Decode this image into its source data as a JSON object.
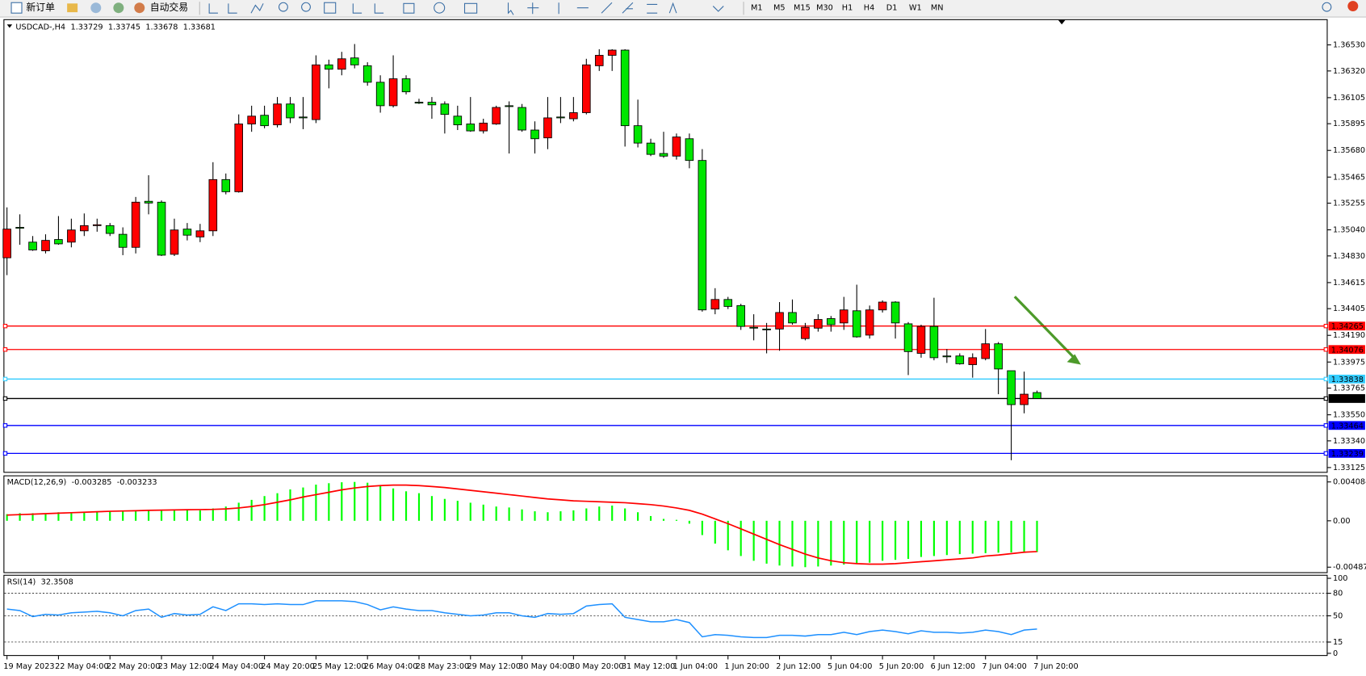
{
  "toolbar": {
    "new_order": "新订单",
    "auto_trading": "自动交易",
    "timeframes": [
      "M1",
      "M5",
      "M15",
      "M30",
      "H1",
      "H4",
      "D1",
      "W1",
      "MN"
    ]
  },
  "chart_data": [
    {
      "type": "candlestick",
      "title": "USDCAD-,H4",
      "up_color": "#ff0000",
      "down_color": "#00e600",
      "categories": [
        "19 May 2023",
        null,
        null,
        null,
        "22 May 04:00",
        null,
        null,
        null,
        "22 May 20:00",
        null,
        null,
        null,
        "23 May 12:00",
        null,
        null,
        null,
        "24 May 04:00",
        null,
        null,
        null,
        "24 May 20:00",
        null,
        null,
        null,
        "25 May 12:00",
        null,
        null,
        null,
        "26 May 04:00",
        null,
        null,
        null,
        "28 May 23:00",
        null,
        null,
        null,
        "29 May 12:00",
        null,
        null,
        null,
        "30 May 04:00",
        null,
        null,
        null,
        "30 May 20:00",
        null,
        null,
        null,
        "31 May 12:00",
        null,
        null,
        null,
        "1 Jun 04:00",
        null,
        null,
        null,
        "1 Jun 20:00",
        null,
        null,
        null,
        "2 Jun 12:00",
        null,
        null,
        null,
        "5 Jun 04:00",
        null,
        null,
        null,
        "5 Jun 20:00",
        null,
        null,
        null,
        "6 Jun 12:00",
        null,
        null,
        null,
        "7 Jun 04:00",
        null,
        null,
        null,
        "7 Jun 20:00"
      ],
      "open": [
        1.34815,
        1.3506,
        1.34941,
        1.34871,
        1.34962,
        1.34941,
        1.35032,
        1.35074,
        1.35074,
        1.35004,
        1.34899,
        1.3527,
        1.35263,
        1.34843,
        1.35046,
        1.34983,
        1.35032,
        1.35445,
        1.35347,
        1.35893,
        1.35963,
        1.35886,
        1.36054,
        1.35949,
        1.35928,
        1.36369,
        1.36334,
        1.36425,
        1.36362,
        1.36229,
        1.3604,
        1.36257,
        1.36068,
        1.36068,
        1.36054,
        1.35956,
        1.35893,
        1.35837,
        1.35893,
        1.3604,
        1.36026,
        1.35844,
        1.35781,
        1.35949,
        1.35935,
        1.35984,
        1.36362,
        1.36446,
        1.36488,
        1.35879,
        1.35739,
        1.35655,
        1.35634,
        1.35774,
        1.35599,
        1.34402,
        1.34479,
        1.3443,
        1.34255,
        1.34241,
        1.34241,
        1.34374,
        1.34164,
        1.34248,
        1.34325,
        1.3429,
        1.34388,
        1.34192,
        1.34395,
        1.34458,
        1.34283,
        1.34045,
        1.34262,
        1.34024,
        1.34024,
        1.33954,
        1.34003,
        1.34122,
        1.33905,
        1.33632,
        1.33729
      ],
      "high": [
        1.35221,
        1.35165,
        1.3499,
        1.35004,
        1.35151,
        1.3513,
        1.35172,
        1.3513,
        1.35095,
        1.3506,
        1.35305,
        1.3548,
        1.35277,
        1.3513,
        1.35095,
        1.35088,
        1.35585,
        1.35494,
        1.3597,
        1.3604,
        1.3604,
        1.3611,
        1.3611,
        1.3611,
        1.36446,
        1.36411,
        1.36474,
        1.36537,
        1.3639,
        1.36285,
        1.36446,
        1.36285,
        1.36096,
        1.3611,
        1.36075,
        1.3604,
        1.3611,
        1.35935,
        1.3604,
        1.36075,
        1.36054,
        1.35914,
        1.3611,
        1.3611,
        1.3611,
        1.36418,
        1.36495,
        1.36495,
        1.36495,
        1.36089,
        1.35774,
        1.3583,
        1.35816,
        1.35816,
        1.3569,
        1.3457,
        1.345,
        1.34444,
        1.3436,
        1.3429,
        1.34458,
        1.34479,
        1.3429,
        1.3436,
        1.34346,
        1.345,
        1.34598,
        1.3443,
        1.34472,
        1.34465,
        1.34297,
        1.34276,
        1.34493,
        1.3408,
        1.34045,
        1.34045,
        1.34241,
        1.34136,
        1.33905,
        1.33898,
        1.33745
      ],
      "low": [
        1.34675,
        1.3492,
        1.34871,
        1.3485,
        1.3492,
        1.34899,
        1.3499,
        1.35025,
        1.3499,
        1.34836,
        1.3485,
        1.35165,
        1.34829,
        1.34829,
        1.34955,
        1.34941,
        1.3499,
        1.35326,
        1.3534,
        1.3583,
        1.35858,
        1.35865,
        1.359,
        1.35851,
        1.359,
        1.3618,
        1.36285,
        1.36341,
        1.36201,
        1.35984,
        1.36026,
        1.36131,
        1.36054,
        1.35935,
        1.35816,
        1.35844,
        1.3583,
        1.35816,
        1.35886,
        1.35655,
        1.3583,
        1.35655,
        1.3569,
        1.359,
        1.35914,
        1.3597,
        1.3632,
        1.3632,
        1.35711,
        1.35704,
        1.35634,
        1.3562,
        1.35606,
        1.35536,
        1.34381,
        1.3436,
        1.34402,
        1.34234,
        1.3415,
        1.34045,
        1.34066,
        1.34276,
        1.3415,
        1.3422,
        1.3422,
        1.34234,
        1.34171,
        1.34164,
        1.34374,
        1.34164,
        1.3387,
        1.3401,
        1.33989,
        1.33968,
        1.33954,
        1.33849,
        1.33989,
        1.33716,
        1.33184,
        1.33562,
        1.33678
      ],
      "close": [
        1.35046,
        1.35053,
        1.34878,
        1.34955,
        1.34927,
        1.35039,
        1.35074,
        1.35081,
        1.35011,
        1.34899,
        1.35263,
        1.35256,
        1.34836,
        1.35039,
        1.34997,
        1.35032,
        1.35445,
        1.35347,
        1.35893,
        1.35956,
        1.35879,
        1.36054,
        1.35942,
        1.35942,
        1.36369,
        1.36334,
        1.36418,
        1.36369,
        1.36229,
        1.3604,
        1.36257,
        1.36152,
        1.36061,
        1.36047,
        1.3597,
        1.35886,
        1.35837,
        1.359,
        1.36026,
        1.36033,
        1.35844,
        1.35774,
        1.35942,
        1.35942,
        1.35984,
        1.36369,
        1.36446,
        1.36488,
        1.35879,
        1.35739,
        1.35648,
        1.35634,
        1.35788,
        1.35599,
        1.34395,
        1.34479,
        1.34423,
        1.34262,
        1.34248,
        1.34234,
        1.34374,
        1.3429,
        1.34255,
        1.34318,
        1.34276,
        1.34395,
        1.34178,
        1.34395,
        1.34458,
        1.3429,
        1.34059,
        1.34262,
        1.3401,
        1.34017,
        1.33961,
        1.3401,
        1.34122,
        1.33919,
        1.33632,
        1.33716,
        1.33681
      ],
      "ylim": [
        1.3309,
        1.3673
      ],
      "yticks": [
        {
          "value": 1.3653,
          "label": "1.36530"
        },
        {
          "value": 1.3632,
          "label": "1.36320"
        },
        1.36105,
        1.35895,
        {
          "value": 1.3568,
          "label": "1.35680"
        },
        1.35465,
        1.35255,
        {
          "value": 1.3504,
          "label": "1.35040"
        },
        {
          "value": 1.3483,
          "label": "1.34830"
        },
        1.34615,
        1.34405,
        {
          "value": 1.3419,
          "label": "1.34190"
        },
        1.33975,
        1.33765,
        {
          "value": 1.3355,
          "label": "1.33550"
        },
        {
          "value": 1.3334,
          "label": "1.33340"
        },
        1.33125
      ],
      "levels": [
        {
          "value": 1.34265,
          "color": "#ff0000"
        },
        {
          "value": 1.34076,
          "color": "#ff0000"
        },
        {
          "value": 1.33838,
          "color": "#33ccff"
        },
        {
          "value": 1.33681,
          "color": "#000000"
        },
        {
          "value": 1.33464,
          "color": "#0000ff"
        },
        {
          "value": 1.33239,
          "color": "#0000ff"
        }
      ]
    },
    {
      "type": "macd",
      "title": "MACD(12,26,9)",
      "histogram_color": "#00ff00",
      "signal_color": "#ff0000",
      "histogram": [
        0.0007,
        0.0008,
        0.0008,
        0.0008,
        0.0009,
        0.0009,
        0.0009,
        0.001,
        0.001,
        0.001,
        0.001,
        0.0011,
        0.0011,
        0.0011,
        0.0011,
        0.0011,
        0.0013,
        0.0015,
        0.0019,
        0.0022,
        0.0026,
        0.0029,
        0.0033,
        0.0035,
        0.0038,
        0.00395,
        0.00405,
        0.004084,
        0.004,
        0.0037,
        0.0034,
        0.0031,
        0.0029,
        0.0026,
        0.0023,
        0.0021,
        0.0019,
        0.0017,
        0.0015,
        0.0014,
        0.0012,
        0.001,
        0.0009,
        0.001,
        0.0011,
        0.0013,
        0.0015,
        0.0016,
        0.0013,
        0.0009,
        0.0005,
        0.0002,
        0.0001,
        -0.0003,
        -0.0015,
        -0.0024,
        -0.0031,
        -0.0037,
        -0.0042,
        -0.0045,
        -0.0047,
        -0.0048,
        -0.004872,
        -0.0048,
        -0.0047,
        -0.0046,
        -0.0045,
        -0.0044,
        -0.0042,
        -0.0041,
        -0.004,
        -0.0038,
        -0.0037,
        -0.0036,
        -0.0035,
        -0.00345,
        -0.0034,
        -0.00335,
        -0.00332,
        -0.0033,
        -0.003285
      ],
      "signal": [
        0.0006,
        0.00065,
        0.0007,
        0.00075,
        0.0008,
        0.00085,
        0.0009,
        0.00095,
        0.001,
        0.00103,
        0.00106,
        0.0011,
        0.00112,
        0.00114,
        0.00116,
        0.00118,
        0.0012,
        0.00125,
        0.00135,
        0.0015,
        0.0017,
        0.00195,
        0.0022,
        0.0025,
        0.00275,
        0.003,
        0.00325,
        0.00345,
        0.0036,
        0.0037,
        0.00375,
        0.00375,
        0.0037,
        0.0036,
        0.0035,
        0.00335,
        0.0032,
        0.00305,
        0.0029,
        0.00275,
        0.0026,
        0.00245,
        0.0023,
        0.0022,
        0.0021,
        0.00205,
        0.002,
        0.00195,
        0.0019,
        0.0018,
        0.0017,
        0.00155,
        0.00135,
        0.0011,
        0.0007,
        0.0002,
        -0.0003,
        -0.00085,
        -0.0014,
        -0.00195,
        -0.0025,
        -0.003,
        -0.0035,
        -0.0039,
        -0.0042,
        -0.0044,
        -0.0045,
        -0.00455,
        -0.00455,
        -0.0045,
        -0.0044,
        -0.0043,
        -0.0042,
        -0.0041,
        -0.004,
        -0.0039,
        -0.0037,
        -0.0036,
        -0.00345,
        -0.0033,
        -0.003233
      ],
      "ylim": [
        -0.0054,
        0.00468
      ],
      "yticks": [
        0.004084,
        {
          "value": 0,
          "label": "0.00"
        },
        -0.004872
      ]
    },
    {
      "type": "line",
      "title": "RSI(14)",
      "color": "#1e90ff",
      "values": [
        59,
        57,
        49,
        52,
        51,
        54,
        55,
        56,
        54,
        50,
        57,
        59,
        48,
        53,
        51,
        52,
        62,
        57,
        66,
        66,
        65,
        66,
        65,
        65,
        70,
        70,
        70,
        69,
        65,
        58,
        62,
        59,
        57,
        57,
        54,
        52,
        50,
        51,
        54,
        54,
        50,
        48,
        53,
        52,
        53,
        63,
        65,
        66,
        48,
        45,
        42,
        42,
        45,
        41,
        22,
        25,
        24,
        22,
        21,
        21,
        24,
        24,
        23,
        25,
        25,
        28,
        25,
        29,
        31,
        29,
        26,
        30,
        28,
        28,
        27,
        28,
        31,
        29,
        25,
        31,
        32.3508
      ],
      "ylim": [
        0,
        100
      ],
      "yticks": [
        100,
        80,
        50,
        15,
        0
      ]
    }
  ]
}
